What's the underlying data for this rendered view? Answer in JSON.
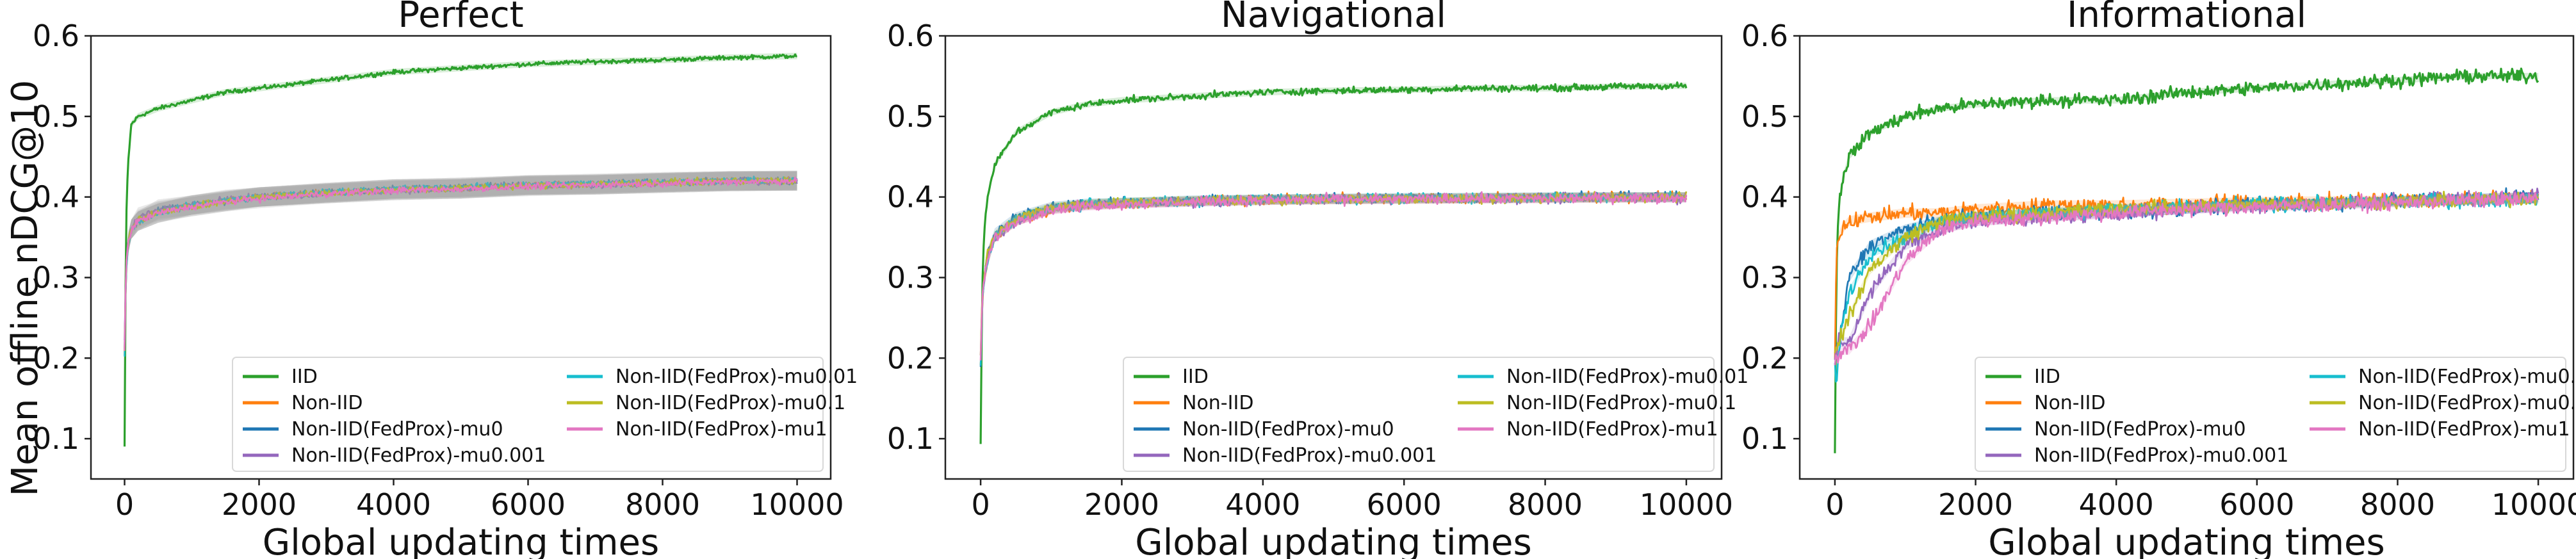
{
  "figure": {
    "ylabel": "Mean offline nDCG@10"
  },
  "legend_entries": [
    {
      "name": "IID",
      "color": "#2ca02c"
    },
    {
      "name": "Non-IID",
      "color": "#ff7f0e"
    },
    {
      "name": "Non-IID(FedProx)-mu0",
      "color": "#1f77b4"
    },
    {
      "name": "Non-IID(FedProx)-mu0.001",
      "color": "#9467bd"
    },
    {
      "name": "Non-IID(FedProx)-mu0.01",
      "color": "#17becf"
    },
    {
      "name": "Non-IID(FedProx)-mu0.1",
      "color": "#bcbd22"
    },
    {
      "name": "Non-IID(FedProx)-mu1",
      "color": "#e377c2"
    }
  ],
  "chart_data": [
    {
      "type": "line",
      "title": "Perfect",
      "xlabel": "Global updating times",
      "ylabel": "Mean offline nDCG@10",
      "xlim": [
        -500,
        10500
      ],
      "ylim": [
        0.05,
        0.6
      ],
      "xticks": [
        0,
        2000,
        4000,
        6000,
        8000,
        10000
      ],
      "yticks": [
        0.1,
        0.2,
        0.3,
        0.4,
        0.5,
        0.6
      ],
      "legend_position": "lower-right",
      "grid": false,
      "shaded_band": true,
      "x": [
        0,
        20,
        50,
        100,
        200,
        500,
        1000,
        1500,
        2000,
        3000,
        4000,
        5000,
        6000,
        7000,
        8000,
        9000,
        10000
      ],
      "series": [
        {
          "name": "IID",
          "values": [
            0.09,
            0.36,
            0.44,
            0.49,
            0.5,
            0.51,
            0.52,
            0.53,
            0.535,
            0.545,
            0.555,
            0.56,
            0.565,
            0.568,
            0.57,
            0.573,
            0.575
          ]
        },
        {
          "name": "Non-IID",
          "values": [
            0.2,
            0.3,
            0.34,
            0.36,
            0.37,
            0.38,
            0.39,
            0.395,
            0.4,
            0.405,
            0.41,
            0.41,
            0.415,
            0.415,
            0.418,
            0.42,
            0.42
          ]
        },
        {
          "name": "Non-IID(FedProx)-mu0",
          "values": [
            0.21,
            0.31,
            0.34,
            0.36,
            0.37,
            0.385,
            0.39,
            0.395,
            0.4,
            0.405,
            0.41,
            0.412,
            0.415,
            0.416,
            0.418,
            0.42,
            0.42
          ]
        },
        {
          "name": "Non-IID(FedProx)-mu0.001",
          "values": [
            0.22,
            0.31,
            0.345,
            0.36,
            0.375,
            0.383,
            0.39,
            0.397,
            0.4,
            0.404,
            0.408,
            0.41,
            0.414,
            0.415,
            0.417,
            0.419,
            0.42
          ]
        },
        {
          "name": "Non-IID(FedProx)-mu0.01",
          "values": [
            0.2,
            0.3,
            0.34,
            0.36,
            0.37,
            0.38,
            0.39,
            0.396,
            0.4,
            0.406,
            0.41,
            0.412,
            0.415,
            0.417,
            0.419,
            0.42,
            0.421
          ]
        },
        {
          "name": "Non-IID(FedProx)-mu0.1",
          "values": [
            0.21,
            0.31,
            0.34,
            0.36,
            0.372,
            0.382,
            0.388,
            0.394,
            0.4,
            0.405,
            0.409,
            0.411,
            0.414,
            0.416,
            0.418,
            0.42,
            0.42
          ]
        },
        {
          "name": "Non-IID(FedProx)-mu1",
          "values": [
            0.21,
            0.31,
            0.34,
            0.36,
            0.37,
            0.38,
            0.388,
            0.394,
            0.398,
            0.404,
            0.408,
            0.41,
            0.413,
            0.415,
            0.417,
            0.419,
            0.42
          ]
        }
      ]
    },
    {
      "type": "line",
      "title": "Navigational",
      "xlabel": "Global updating times",
      "ylabel": "",
      "xlim": [
        -500,
        10500
      ],
      "ylim": [
        0.05,
        0.6
      ],
      "xticks": [
        0,
        2000,
        4000,
        6000,
        8000,
        10000
      ],
      "yticks": [
        0.1,
        0.2,
        0.3,
        0.4,
        0.5,
        0.6
      ],
      "legend_position": "lower-right",
      "grid": false,
      "x": [
        0,
        20,
        50,
        100,
        200,
        500,
        1000,
        1500,
        2000,
        3000,
        4000,
        5000,
        6000,
        7000,
        8000,
        9000,
        10000
      ],
      "series": [
        {
          "name": "IID",
          "values": [
            0.09,
            0.28,
            0.36,
            0.4,
            0.44,
            0.48,
            0.505,
            0.515,
            0.52,
            0.525,
            0.53,
            0.532,
            0.533,
            0.535,
            0.535,
            0.537,
            0.538
          ]
        },
        {
          "name": "Non-IID",
          "values": [
            0.19,
            0.26,
            0.3,
            0.32,
            0.35,
            0.37,
            0.385,
            0.39,
            0.392,
            0.395,
            0.397,
            0.398,
            0.398,
            0.399,
            0.399,
            0.4,
            0.4
          ]
        },
        {
          "name": "Non-IID(FedProx)-mu0",
          "values": [
            0.19,
            0.27,
            0.3,
            0.33,
            0.355,
            0.375,
            0.388,
            0.392,
            0.393,
            0.396,
            0.397,
            0.398,
            0.399,
            0.399,
            0.4,
            0.4,
            0.4
          ]
        },
        {
          "name": "Non-IID(FedProx)-mu0.001",
          "values": [
            0.2,
            0.27,
            0.3,
            0.33,
            0.35,
            0.37,
            0.385,
            0.39,
            0.392,
            0.394,
            0.396,
            0.397,
            0.398,
            0.398,
            0.399,
            0.399,
            0.399
          ]
        },
        {
          "name": "Non-IID(FedProx)-mu0.01",
          "values": [
            0.19,
            0.26,
            0.3,
            0.32,
            0.35,
            0.372,
            0.386,
            0.391,
            0.393,
            0.395,
            0.397,
            0.398,
            0.398,
            0.399,
            0.399,
            0.4,
            0.4
          ]
        },
        {
          "name": "Non-IID(FedProx)-mu0.1",
          "values": [
            0.2,
            0.27,
            0.3,
            0.33,
            0.352,
            0.373,
            0.387,
            0.391,
            0.393,
            0.395,
            0.396,
            0.397,
            0.398,
            0.398,
            0.399,
            0.399,
            0.4
          ]
        },
        {
          "name": "Non-IID(FedProx)-mu1",
          "values": [
            0.2,
            0.27,
            0.3,
            0.32,
            0.35,
            0.37,
            0.384,
            0.389,
            0.391,
            0.394,
            0.396,
            0.397,
            0.397,
            0.398,
            0.398,
            0.399,
            0.399
          ]
        }
      ]
    },
    {
      "type": "line",
      "title": "Informational",
      "xlabel": "Global updating times",
      "ylabel": "",
      "xlim": [
        -500,
        10500
      ],
      "ylim": [
        0.05,
        0.6
      ],
      "xticks": [
        0,
        2000,
        4000,
        6000,
        8000,
        10000
      ],
      "yticks": [
        0.1,
        0.2,
        0.3,
        0.4,
        0.5,
        0.6
      ],
      "legend_position": "lower-right",
      "grid": false,
      "x": [
        0,
        20,
        50,
        100,
        200,
        500,
        1000,
        1500,
        2000,
        3000,
        4000,
        5000,
        6000,
        7000,
        8000,
        9000,
        10000
      ],
      "series": [
        {
          "name": "IID",
          "values": [
            0.09,
            0.3,
            0.38,
            0.42,
            0.45,
            0.48,
            0.5,
            0.51,
            0.515,
            0.52,
            0.52,
            0.53,
            0.535,
            0.54,
            0.545,
            0.55,
            0.55
          ]
        },
        {
          "name": "Non-IID",
          "values": [
            0.2,
            0.33,
            0.35,
            0.36,
            0.37,
            0.375,
            0.38,
            0.38,
            0.385,
            0.39,
            0.39,
            0.392,
            0.394,
            0.395,
            0.396,
            0.397,
            0.4
          ]
        },
        {
          "name": "Non-IID(FedProx)-mu0",
          "values": [
            0.2,
            0.21,
            0.22,
            0.24,
            0.3,
            0.34,
            0.36,
            0.37,
            0.375,
            0.38,
            0.38,
            0.385,
            0.39,
            0.392,
            0.395,
            0.398,
            0.4
          ]
        },
        {
          "name": "Non-IID(FedProx)-mu0.001",
          "values": [
            0.2,
            0.21,
            0.22,
            0.22,
            0.22,
            0.28,
            0.34,
            0.36,
            0.37,
            0.375,
            0.38,
            0.385,
            0.39,
            0.392,
            0.395,
            0.398,
            0.4
          ]
        },
        {
          "name": "Non-IID(FedProx)-mu0.01",
          "values": [
            0.2,
            0.17,
            0.2,
            0.24,
            0.28,
            0.33,
            0.35,
            0.37,
            0.375,
            0.38,
            0.385,
            0.387,
            0.39,
            0.392,
            0.394,
            0.396,
            0.398
          ]
        },
        {
          "name": "Non-IID(FedProx)-mu0.1",
          "values": [
            0.2,
            0.21,
            0.22,
            0.23,
            0.25,
            0.31,
            0.35,
            0.37,
            0.375,
            0.38,
            0.385,
            0.387,
            0.39,
            0.392,
            0.394,
            0.396,
            0.398
          ]
        },
        {
          "name": "Non-IID(FedProx)-mu1",
          "values": [
            0.2,
            0.21,
            0.2,
            0.21,
            0.21,
            0.24,
            0.32,
            0.36,
            0.37,
            0.375,
            0.38,
            0.385,
            0.388,
            0.39,
            0.393,
            0.396,
            0.398
          ]
        }
      ]
    }
  ]
}
